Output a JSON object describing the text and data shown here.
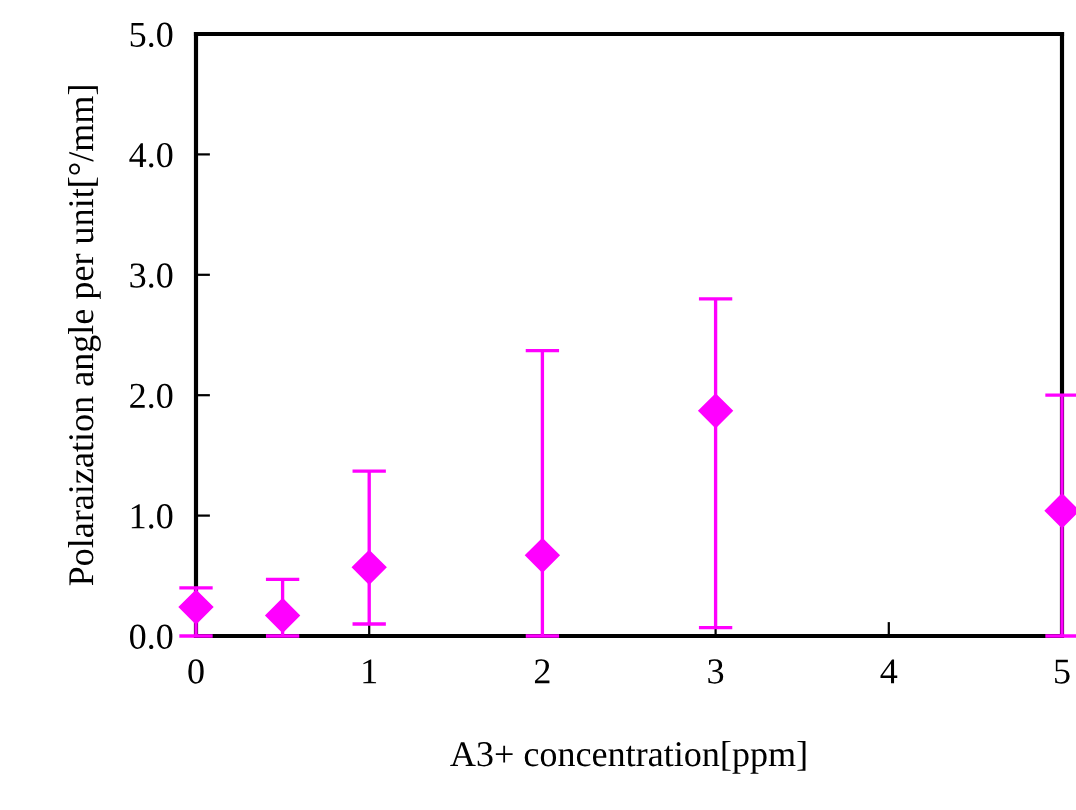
{
  "chart_data": {
    "type": "scatter",
    "xlabel": "A3+ concentration[ppm]",
    "ylabel": "Polaraization angle per unit[°/mm]",
    "x": [
      0,
      0.5,
      1,
      2,
      3,
      5
    ],
    "values": [
      0.24,
      0.17,
      0.57,
      0.67,
      1.87,
      1.04
    ],
    "errors": [
      [
        0,
        0.4
      ],
      [
        0,
        0.47
      ],
      [
        0.1,
        1.37
      ],
      [
        0,
        2.37
      ],
      [
        0.07,
        2.8
      ],
      [
        0,
        2.0
      ]
    ],
    "color": "#ff00ff",
    "marker": "diamond",
    "xlim": [
      0,
      5
    ],
    "xticks": [
      0,
      1,
      2,
      3,
      4,
      5
    ],
    "ylim": [
      0,
      5
    ],
    "yticks": [
      {
        "value": 0,
        "label": "0.0"
      },
      {
        "value": 1,
        "label": "1.0"
      },
      {
        "value": 2,
        "label": "2.0"
      },
      {
        "value": 3,
        "label": "3.0"
      },
      {
        "value": 4,
        "label": "4.0"
      },
      {
        "value": 5,
        "label": "5.0"
      }
    ],
    "grid": false,
    "legend": false
  }
}
